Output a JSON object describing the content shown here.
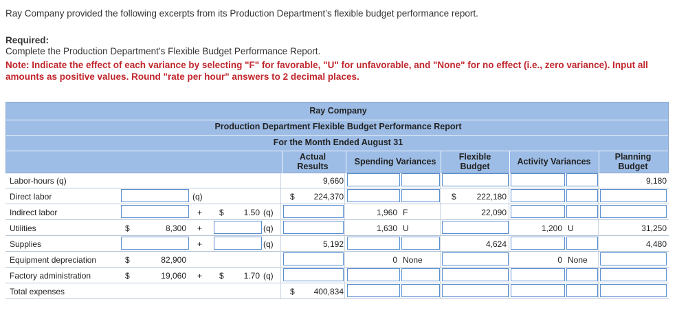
{
  "intro": "Ray Company provided the following excerpts from its Production Department’s flexible budget performance report.",
  "required_label": "Required:",
  "instruction": "Complete the Production Department’s Flexible Budget Performance Report.",
  "note": "Note: Indicate the effect of each variance by selecting \"F\" for favorable, \"U\" for unfavorable, and \"None\" for no effect (i.e., zero variance). Input all amounts as positive values. Round \"rate per hour\" answers to 2 decimal places.",
  "report": {
    "company": "Ray Company",
    "title": "Production Department Flexible Budget Performance Report",
    "period": "For the Month Ended August 31",
    "col_actual_1": "Actual",
    "col_actual_2": "Results",
    "col_spending": "Spending Variances",
    "col_flex_1": "Flexible",
    "col_flex_2": "Budget",
    "col_activity": "Activity Variances",
    "col_plan_1": "Planning",
    "col_plan_2": "Budget"
  },
  "rows": {
    "labor_hours": {
      "label": "Labor-hours (q)",
      "actual": "9,660",
      "planning": "9,180"
    },
    "direct_labor": {
      "label": "Direct labor",
      "q": "(q)",
      "dollar": "$",
      "actual": "224,370",
      "flex_dollar": "$",
      "flex": "222,180"
    },
    "indirect_labor": {
      "label": "Indirect labor",
      "plus": "+",
      "dollar": "$",
      "rate": "1.50",
      "q": "(q)",
      "spending": "1,960",
      "spending_eff": "F",
      "flex": "22,090"
    },
    "utilities": {
      "label": "Utilities",
      "dollar": "$",
      "fixed": "8,300",
      "plus": "+",
      "q": "(q)",
      "spending": "1,630",
      "spending_eff": "U",
      "activity": "1,200",
      "activity_eff": "U",
      "planning": "31,250"
    },
    "supplies": {
      "label": "Supplies",
      "plus": "+",
      "q": "(q)",
      "actual": "5,192",
      "flex": "4,624",
      "planning": "4,480"
    },
    "equipment": {
      "label": "Equipment depreciation",
      "dollar": "$",
      "fixed": "82,900",
      "spending": "0",
      "spending_eff": "None",
      "activity": "0",
      "activity_eff": "None"
    },
    "factory_admin": {
      "label": "Factory administration",
      "dollar": "$",
      "fixed": "19,060",
      "plus": "+",
      "dollar2": "$",
      "rate": "1.70",
      "q": "(q)"
    },
    "total": {
      "label": "Total expenses",
      "dollar": "$",
      "actual": "400,834"
    }
  }
}
